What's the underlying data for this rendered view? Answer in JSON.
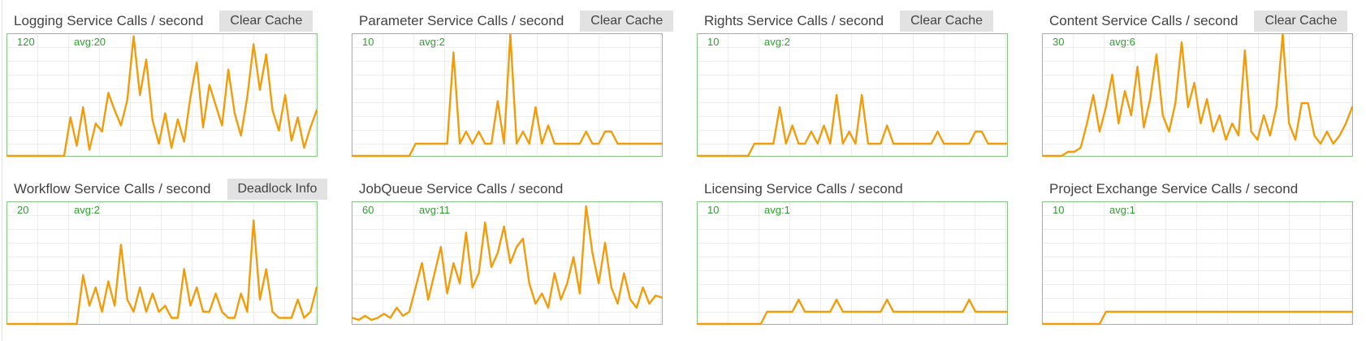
{
  "colors": {
    "line": "#f19c0a",
    "chart_border": "#84c684",
    "label_green": "#2f9e2f",
    "grid": "#ededed",
    "title_text": "#424242",
    "button_bg": "#e2e2e2",
    "page_bg": "#ffffff"
  },
  "chart_data": [
    {
      "type": "line",
      "title": "Logging Service Calls / second",
      "button": "Clear Cache",
      "y_max_label": "120",
      "avg_label": "avg:20",
      "ylim": [
        0,
        120
      ],
      "grid": true,
      "values": [
        0,
        0,
        0,
        0,
        0,
        0,
        0,
        0,
        0,
        0,
        38,
        10,
        48,
        6,
        32,
        24,
        62,
        45,
        30,
        55,
        118,
        60,
        95,
        35,
        12,
        42,
        8,
        36,
        14,
        58,
        92,
        28,
        70,
        50,
        30,
        85,
        42,
        20,
        58,
        110,
        65,
        100,
        45,
        25,
        60,
        15,
        38,
        8,
        28,
        45
      ]
    },
    {
      "type": "line",
      "title": "Parameter Service Calls / second",
      "button": "Clear Cache",
      "y_max_label": "10",
      "avg_label": "avg:2",
      "ylim": [
        0,
        10
      ],
      "grid": true,
      "values": [
        0,
        0,
        0,
        0,
        0,
        0,
        0,
        0,
        0,
        0,
        1,
        1,
        1,
        1,
        1,
        1,
        8.5,
        1,
        2,
        1,
        2,
        1,
        1,
        4.5,
        1,
        10,
        1,
        2,
        1,
        4,
        1,
        2.5,
        1,
        1,
        1,
        1,
        1,
        2,
        1,
        1,
        2,
        2,
        1,
        1,
        1,
        1,
        1,
        1,
        1,
        1
      ]
    },
    {
      "type": "line",
      "title": "Rights Service Calls / second",
      "button": "Clear Cache",
      "y_max_label": "10",
      "avg_label": "avg:2",
      "ylim": [
        0,
        10
      ],
      "grid": true,
      "values": [
        0,
        0,
        0,
        0,
        0,
        0,
        0,
        0,
        0,
        1,
        1,
        1,
        1,
        4,
        1,
        2.5,
        1,
        1,
        2,
        1,
        2.5,
        1,
        5,
        1,
        2,
        1,
        5,
        1,
        1,
        1,
        2.5,
        1,
        1,
        1,
        1,
        1,
        1,
        1,
        2,
        1,
        1,
        1,
        1,
        1,
        2,
        2,
        1,
        1,
        1,
        1
      ]
    },
    {
      "type": "line",
      "title": "Content Service Calls / second",
      "button": "Clear Cache",
      "y_max_label": "30",
      "avg_label": "avg:6",
      "ylim": [
        0,
        30
      ],
      "grid": true,
      "values": [
        0,
        0,
        0,
        0,
        1,
        1,
        2,
        8,
        15,
        6,
        12,
        20,
        8,
        16,
        10,
        22,
        7,
        14,
        25,
        10,
        6,
        13,
        28,
        12,
        18,
        8,
        14,
        6,
        10,
        4,
        8,
        5,
        26,
        6,
        4,
        10,
        5,
        12,
        30,
        8,
        4,
        13,
        13,
        5,
        3,
        6,
        3,
        5,
        8,
        12
      ]
    },
    {
      "type": "line",
      "title": "Workflow Service Calls / second",
      "button": "Deadlock Info",
      "y_max_label": "20",
      "avg_label": "avg:2",
      "ylim": [
        0,
        20
      ],
      "grid": true,
      "values": [
        0,
        0,
        0,
        0,
        0,
        0,
        0,
        0,
        0,
        0,
        0,
        0,
        8,
        3,
        6,
        2,
        7,
        3,
        13,
        4,
        2,
        6,
        2,
        5,
        2,
        3,
        1,
        1,
        9,
        3,
        6,
        2,
        2,
        5,
        2,
        1,
        1,
        5,
        2,
        17,
        4,
        9,
        2,
        1,
        1,
        1,
        4,
        1,
        2,
        6
      ]
    },
    {
      "type": "line",
      "title": "JobQueue Service Calls / second",
      "y_max_label": "60",
      "avg_label": "avg:11",
      "ylim": [
        0,
        60
      ],
      "grid": true,
      "values": [
        3,
        2,
        4,
        2,
        3,
        5,
        3,
        8,
        4,
        6,
        18,
        30,
        12,
        25,
        38,
        15,
        30,
        20,
        45,
        18,
        25,
        50,
        28,
        35,
        48,
        30,
        38,
        42,
        20,
        10,
        15,
        8,
        25,
        12,
        20,
        33,
        15,
        58,
        35,
        20,
        40,
        18,
        10,
        25,
        12,
        8,
        18,
        10,
        14,
        13
      ]
    },
    {
      "type": "line",
      "title": "Licensing Service Calls / second",
      "y_max_label": "10",
      "avg_label": "avg:1",
      "ylim": [
        0,
        10
      ],
      "grid": true,
      "values": [
        0,
        0,
        0,
        0,
        0,
        0,
        0,
        0,
        0,
        0,
        0,
        1,
        1,
        1,
        1,
        1,
        2,
        1,
        1,
        1,
        1,
        1,
        2,
        1,
        1,
        1,
        1,
        1,
        1,
        1,
        2,
        1,
        1,
        1,
        1,
        1,
        1,
        1,
        1,
        1,
        1,
        1,
        1,
        2,
        1,
        1,
        1,
        1,
        1,
        1
      ]
    },
    {
      "type": "line",
      "title": "Project Exchange Service Calls / second",
      "y_max_label": "10",
      "avg_label": "avg:1",
      "ylim": [
        0,
        10
      ],
      "grid": true,
      "values": [
        0,
        0,
        0,
        0,
        0,
        0,
        0,
        0,
        0,
        0,
        1,
        1,
        1,
        1,
        1,
        1,
        1,
        1,
        1,
        1,
        1,
        1,
        1,
        1,
        1,
        1,
        1,
        1,
        1,
        1,
        1,
        1,
        1,
        1,
        1,
        1,
        1,
        1,
        1,
        1,
        1,
        1,
        1,
        1,
        1,
        1,
        1,
        1,
        1,
        1
      ]
    }
  ]
}
